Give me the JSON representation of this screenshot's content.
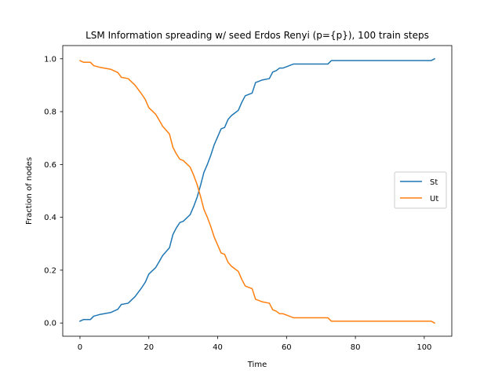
{
  "chart_data": {
    "type": "line",
    "title": "LSM Information spreading w/ seed Erdos Renyi (p={p}), 100 train steps",
    "xlabel": "Time",
    "ylabel": "Fraction of nodes",
    "xlim": [
      -5,
      108
    ],
    "ylim": [
      -0.05,
      1.05
    ],
    "xticks": [
      0,
      20,
      40,
      60,
      80,
      100
    ],
    "yticks": [
      0.0,
      0.2,
      0.4,
      0.6,
      0.8,
      1.0
    ],
    "xtick_labels": [
      "0",
      "20",
      "40",
      "60",
      "80",
      "100"
    ],
    "ytick_labels": [
      "0.0",
      "0.2",
      "0.4",
      "0.6",
      "0.8",
      "1.0"
    ],
    "grid": false,
    "legend_position": "center-right",
    "series": [
      {
        "name": "St",
        "color": "#1f77b4",
        "x": [
          0,
          1,
          3,
          4,
          6,
          9,
          11,
          12,
          14,
          16,
          18,
          19,
          20,
          22,
          23,
          24,
          25,
          26,
          27,
          28,
          29,
          30,
          32,
          33,
          34,
          35,
          36,
          37,
          38,
          39,
          40,
          41,
          42,
          43,
          44,
          45,
          46,
          47,
          48,
          49,
          50,
          51,
          52,
          53,
          55,
          56,
          57,
          58,
          59,
          60,
          61,
          62,
          64,
          65,
          72,
          73,
          102,
          103
        ],
        "y": [
          0.007,
          0.013,
          0.013,
          0.026,
          0.033,
          0.04,
          0.052,
          0.07,
          0.075,
          0.1,
          0.135,
          0.155,
          0.185,
          0.21,
          0.232,
          0.255,
          0.27,
          0.285,
          0.335,
          0.36,
          0.38,
          0.385,
          0.41,
          0.44,
          0.475,
          0.52,
          0.57,
          0.6,
          0.635,
          0.675,
          0.705,
          0.735,
          0.74,
          0.77,
          0.785,
          0.795,
          0.805,
          0.835,
          0.86,
          0.865,
          0.87,
          0.91,
          0.915,
          0.92,
          0.925,
          0.95,
          0.955,
          0.965,
          0.965,
          0.97,
          0.975,
          0.98,
          0.98,
          0.98,
          0.98,
          0.993,
          0.993,
          1.0
        ]
      },
      {
        "name": "Ut",
        "color": "#ff7f0e",
        "x": [
          0,
          1,
          3,
          4,
          6,
          9,
          11,
          12,
          14,
          16,
          18,
          19,
          20,
          22,
          23,
          24,
          25,
          26,
          27,
          28,
          29,
          30,
          32,
          33,
          34,
          35,
          36,
          37,
          38,
          39,
          40,
          41,
          42,
          43,
          44,
          45,
          46,
          47,
          48,
          49,
          50,
          51,
          52,
          53,
          55,
          56,
          57,
          58,
          59,
          60,
          61,
          62,
          64,
          65,
          72,
          73,
          102,
          103
        ],
        "y": [
          0.993,
          0.987,
          0.987,
          0.974,
          0.967,
          0.96,
          0.948,
          0.93,
          0.925,
          0.9,
          0.865,
          0.845,
          0.815,
          0.79,
          0.768,
          0.745,
          0.73,
          0.715,
          0.665,
          0.64,
          0.62,
          0.615,
          0.59,
          0.56,
          0.525,
          0.48,
          0.43,
          0.4,
          0.365,
          0.325,
          0.295,
          0.265,
          0.26,
          0.23,
          0.215,
          0.205,
          0.195,
          0.165,
          0.14,
          0.135,
          0.13,
          0.09,
          0.085,
          0.08,
          0.075,
          0.05,
          0.045,
          0.035,
          0.035,
          0.03,
          0.025,
          0.02,
          0.02,
          0.02,
          0.02,
          0.007,
          0.007,
          0.0
        ]
      }
    ]
  }
}
